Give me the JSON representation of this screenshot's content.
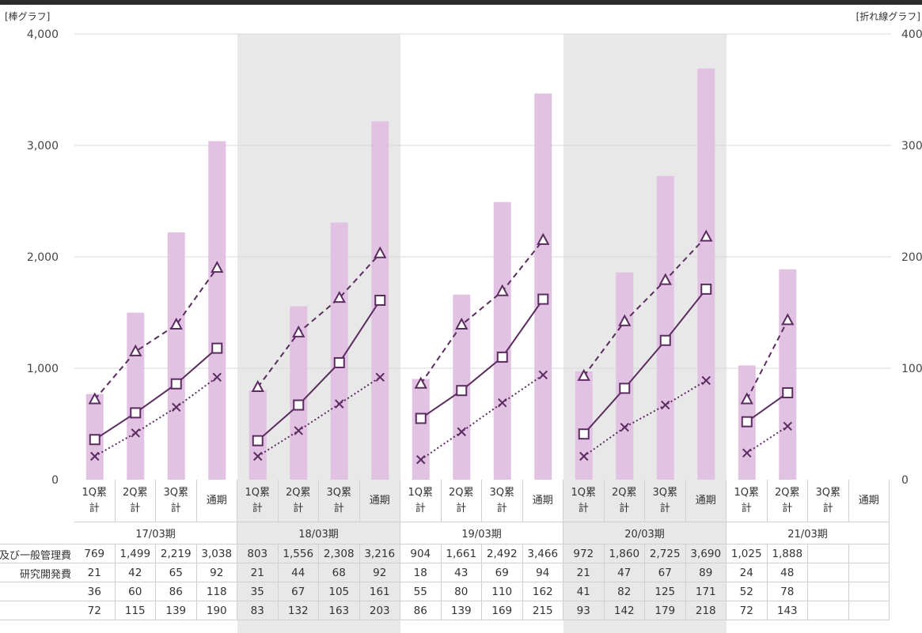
{
  "chart_data": {
    "type": "bar",
    "left_axis_title": "[棒グラフ]",
    "right_axis_title": "[折れ線グラフ]",
    "ylim_left": [
      0,
      4000
    ],
    "ylim_right": [
      0,
      400
    ],
    "yticks_left": [
      "0",
      "1,000",
      "2,000",
      "3,000",
      "4,000"
    ],
    "yticks_right": [
      "0",
      "100",
      "200",
      "300",
      "400"
    ],
    "grid": true,
    "categories": [
      "1Q累\n計",
      "2Q累\n計",
      "3Q累\n計",
      "通期"
    ],
    "periods": [
      "17/03期",
      "18/03期",
      "19/03期",
      "20/03期",
      "21/03期"
    ],
    "shaded_periods": [
      1,
      3
    ],
    "bar_color": "#e2c2e2",
    "line_color": "#5b2c5f",
    "rows": [
      {
        "label": "販売費及び一般管理費",
        "axis": "left",
        "display": "bar",
        "values": [
          "769",
          "1,499",
          "2,219",
          "3,038",
          "803",
          "1,556",
          "2,308",
          "3,216",
          "904",
          "1,661",
          "2,492",
          "3,466",
          "972",
          "1,860",
          "2,725",
          "3,690",
          "1,025",
          "1,888",
          "",
          ""
        ]
      },
      {
        "label": "研究開発費",
        "axis": "right",
        "display": "line-dotted-x",
        "values": [
          "21",
          "42",
          "65",
          "92",
          "21",
          "44",
          "68",
          "92",
          "18",
          "43",
          "69",
          "94",
          "21",
          "47",
          "67",
          "89",
          "24",
          "48",
          "",
          ""
        ]
      },
      {
        "label": "",
        "axis": "right",
        "display": "line-solid-square",
        "values": [
          "36",
          "60",
          "86",
          "118",
          "35",
          "67",
          "105",
          "161",
          "55",
          "80",
          "110",
          "162",
          "41",
          "82",
          "125",
          "171",
          "52",
          "78",
          "",
          ""
        ]
      },
      {
        "label": "",
        "axis": "right",
        "display": "line-dashed-triangle",
        "values": [
          "72",
          "115",
          "139",
          "190",
          "83",
          "132",
          "163",
          "203",
          "86",
          "139",
          "169",
          "215",
          "93",
          "142",
          "179",
          "218",
          "72",
          "143",
          "",
          ""
        ]
      }
    ]
  }
}
